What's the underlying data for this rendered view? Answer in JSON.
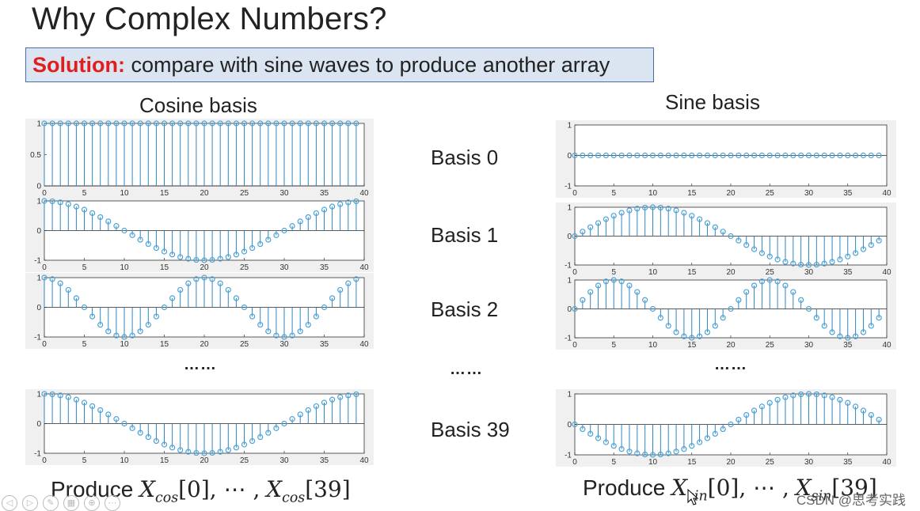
{
  "slide": {
    "title": "Why Complex Numbers?",
    "solution_keyword": "Solution:",
    "solution_text": " compare with sine waves to produce another array",
    "cosine_heading": "Cosine basis",
    "sine_heading": "Sine basis",
    "basis_labels": [
      "Basis 0",
      "Basis 1",
      "Basis 2",
      "Basis 39"
    ],
    "ellipsis": "……",
    "produce_prefix": "Produce ",
    "produce_cos_sub": "cos",
    "produce_sin_sub": "sin",
    "produce_var": "X",
    "produce_first": "[0],",
    "produce_mid": " ⋯ ,",
    "produce_last": "[39]",
    "watermark": "CSDN @思考实践"
  },
  "chart_data": [
    {
      "type": "stem",
      "name": "cos-basis-0",
      "fn": "cos",
      "k": 0,
      "n": 40,
      "x_ticks": [
        0,
        5,
        10,
        15,
        20,
        25,
        30,
        35,
        40
      ],
      "y_ticks": [
        "1",
        "0.5",
        "0"
      ],
      "ylim": [
        0,
        1
      ],
      "xlim": [
        0,
        40
      ]
    },
    {
      "type": "stem",
      "name": "cos-basis-1",
      "fn": "cos",
      "k": 1,
      "n": 40,
      "x_ticks": [
        0,
        5,
        10,
        15,
        20,
        25,
        30,
        35,
        40
      ],
      "y_ticks": [
        "1",
        "0",
        "-1"
      ],
      "ylim": [
        -1,
        1
      ],
      "xlim": [
        0,
        40
      ]
    },
    {
      "type": "stem",
      "name": "cos-basis-2",
      "fn": "cos",
      "k": 2,
      "n": 40,
      "x_ticks": [
        0,
        5,
        10,
        15,
        20,
        25,
        30,
        35,
        40
      ],
      "y_ticks": [
        "1",
        "0",
        "-1"
      ],
      "ylim": [
        -1,
        1
      ],
      "xlim": [
        0,
        40
      ]
    },
    {
      "type": "stem",
      "name": "cos-basis-39",
      "fn": "cos",
      "k": 39,
      "n": 40,
      "x_ticks": [
        0,
        5,
        10,
        15,
        20,
        25,
        30,
        35,
        40
      ],
      "y_ticks": [
        "1",
        "0",
        "-1"
      ],
      "ylim": [
        -1,
        1
      ],
      "xlim": [
        0,
        40
      ]
    },
    {
      "type": "stem",
      "name": "sin-basis-0",
      "fn": "sin",
      "k": 0,
      "n": 40,
      "x_ticks": [
        0,
        5,
        10,
        15,
        20,
        25,
        30,
        35,
        40
      ],
      "y_ticks": [
        "1",
        "0",
        "-1"
      ],
      "ylim": [
        -1,
        1
      ],
      "xlim": [
        0,
        40
      ]
    },
    {
      "type": "stem",
      "name": "sin-basis-1",
      "fn": "sin",
      "k": 1,
      "n": 40,
      "x_ticks": [
        0,
        5,
        10,
        15,
        20,
        25,
        30,
        35,
        40
      ],
      "y_ticks": [
        "1",
        "0",
        "-1"
      ],
      "ylim": [
        -1,
        1
      ],
      "xlim": [
        0,
        40
      ]
    },
    {
      "type": "stem",
      "name": "sin-basis-2",
      "fn": "sin",
      "k": 2,
      "n": 40,
      "x_ticks": [
        0,
        5,
        10,
        15,
        20,
        25,
        30,
        35,
        40
      ],
      "y_ticks": [
        "1",
        "0",
        "-1"
      ],
      "ylim": [
        -1,
        1
      ],
      "xlim": [
        0,
        40
      ]
    },
    {
      "type": "stem",
      "name": "sin-basis-39",
      "fn": "-sin",
      "k": 1,
      "n": 40,
      "x_ticks": [
        0,
        5,
        10,
        15,
        20,
        25,
        30,
        35,
        40
      ],
      "y_ticks": [
        "1",
        "0",
        "-1"
      ],
      "ylim": [
        -1,
        1
      ],
      "xlim": [
        0,
        40
      ]
    }
  ],
  "colors": {
    "stem": "#2e86c1",
    "marker": "#4aa3d8",
    "panel_bg": "#f0f0f0",
    "solution_bg": "#dbe5f1",
    "solution_border": "#4a6ea9",
    "keyword": "#e11d1d"
  }
}
